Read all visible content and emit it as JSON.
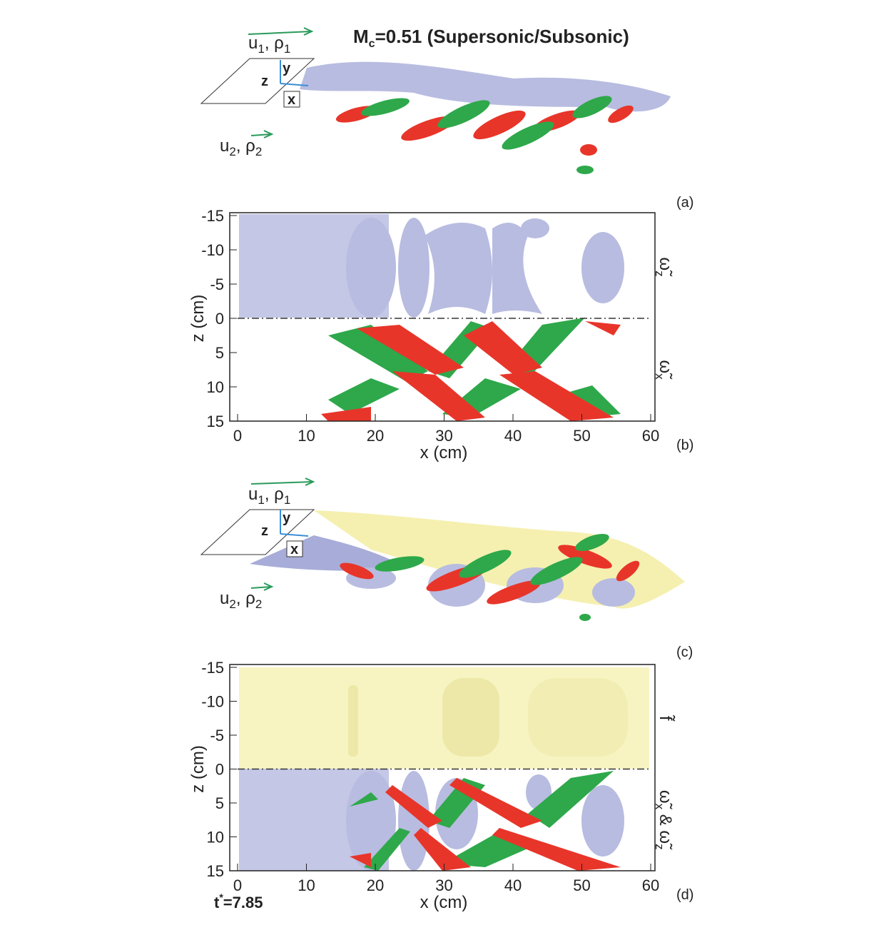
{
  "panels": [
    {
      "title": {
        "main": "M",
        "sub": "c",
        "rest": "=0.51 (Supersonic/Subsonic)"
      },
      "stream_top": {
        "u": "u",
        "u_sub": "1",
        "rho": ", ρ",
        "rho_sub": "1"
      },
      "stream_bottom": {
        "u": "u",
        "u_sub": "2",
        "rho": ", ρ",
        "rho_sub": "2"
      },
      "axes": {
        "z": "z",
        "y": "y",
        "x": "x"
      },
      "label": "(a)"
    },
    {
      "label": "(b)",
      "x_label": "x (cm)",
      "y_label": "z (cm)",
      "x_ticks": [
        0,
        10,
        20,
        30,
        40,
        50,
        60
      ],
      "y_ticks": [
        -15,
        -10,
        -5,
        0,
        5,
        10,
        15
      ],
      "upper_label": {
        "symbol": "ω̃",
        "sub": "z"
      },
      "lower_label": {
        "symbol": "ω̃",
        "sub": "x"
      }
    },
    {
      "stream_top": {
        "u": "u",
        "u_sub": "1",
        "rho": ", ρ",
        "rho_sub": "1"
      },
      "stream_bottom": {
        "u": "u",
        "u_sub": "2",
        "rho": ", ρ",
        "rho_sub": "2"
      },
      "axes": {
        "z": "z",
        "y": "y",
        "x": "x"
      },
      "label": "(c)"
    },
    {
      "label": "(d)",
      "x_label": "x (cm)",
      "y_label": "z (cm)",
      "x_ticks": [
        0,
        10,
        20,
        30,
        40,
        50,
        60
      ],
      "y_ticks": [
        -15,
        -10,
        -5,
        0,
        5,
        10,
        15
      ],
      "upper_label": {
        "symbol": "f̃"
      },
      "lower_label": {
        "symbol": "ω̃",
        "sub": "x",
        "amp": " & ",
        "symbol2": "ω̃",
        "sub2": "z"
      },
      "time": {
        "t": "t",
        "sup": "*",
        "rest": "=7.85"
      }
    }
  ]
}
